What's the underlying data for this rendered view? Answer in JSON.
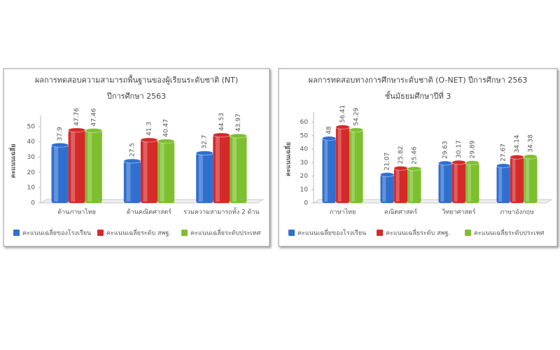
{
  "chart_data": [
    {
      "type": "bar",
      "title": "ผลการทดสอบความสามารถพื้นฐานของผู้เรียนระดับชาติ (NT)",
      "subtitle": "ปีการศึกษา 2563",
      "y_label": "คะแนนเฉลี่ย",
      "categories": [
        "ด้านภาษาไทย",
        "ด้านคณิตศาสตร์",
        "รวมความสามารถทั้ง 2 ด้าน"
      ],
      "series": [
        {
          "name": "คะแนนเฉลี่ยของโรงเรียน",
          "color": "#2f6fcf",
          "values": [
            37.9,
            27.5,
            32.7
          ]
        },
        {
          "name": "คะแนนเฉลี่ยระดับ สพฐ.",
          "color": "#d42a2a",
          "values": [
            47.76,
            41.3,
            44.53
          ]
        },
        {
          "name": "คะแนนเฉลี่ยระดับประเทศ",
          "color": "#7dbf2e",
          "values": [
            47.46,
            40.47,
            43.97
          ]
        }
      ],
      "ylim": [
        0,
        55
      ],
      "yticks": [
        0,
        10,
        20,
        30,
        40,
        50
      ],
      "grid": false,
      "legend": "bottom"
    },
    {
      "type": "bar",
      "title": "ผลการทดสอบทางการศึกษาระดับชาติ (O-NET) ปีการศึกษา 2563",
      "subtitle": "ชั้นมัธยมศึกษาปีที่ 3",
      "y_label": "คะแนนเฉลี่ย",
      "categories": [
        "ภาษาไทย",
        "คณิตศาสตร์",
        "วิทยาศาสตร์",
        "ภาษาอังกฤษ"
      ],
      "series": [
        {
          "name": "คะแนนเฉลี่ยของโรงเรียน",
          "color": "#2f6fcf",
          "values": [
            48,
            21.07,
            29.63,
            27.67
          ]
        },
        {
          "name": "คะแนนเฉลี่ยระดับ สพฐ.",
          "color": "#d42a2a",
          "values": [
            56.41,
            25.82,
            30.17,
            34.14
          ]
        },
        {
          "name": "คะแนนเฉลี่ยระดับประเทศ",
          "color": "#7dbf2e",
          "values": [
            54.29,
            25.46,
            29.89,
            34.38
          ]
        }
      ],
      "ylim": [
        0,
        65
      ],
      "yticks": [
        0,
        10,
        20,
        30,
        40,
        50,
        60
      ],
      "grid": false,
      "legend": "bottom"
    }
  ]
}
